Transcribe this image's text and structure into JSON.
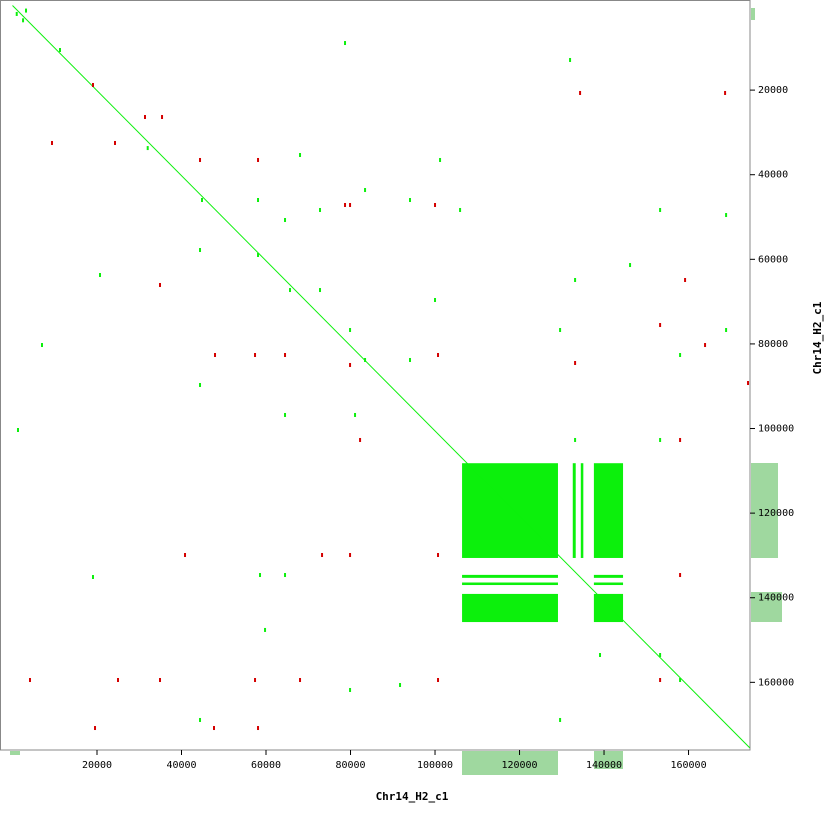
{
  "chart_data": {
    "type": "dotplot",
    "xlabel": "Chr14_H2_c1",
    "ylabel": "Chr14_H2_c1",
    "xlim": [
      0,
      174500
    ],
    "ylim": [
      0,
      175500
    ],
    "xticks": [
      20000,
      40000,
      60000,
      80000,
      100000,
      120000,
      140000,
      160000
    ],
    "yticks": [
      20000,
      40000,
      60000,
      80000,
      100000,
      120000,
      140000,
      160000
    ],
    "color": "#0cf00c",
    "diagonal": {
      "x": [
        0,
        174500
      ],
      "y": [
        0,
        175500
      ]
    },
    "blocks": [
      {
        "x": [
          106400,
          129100
        ],
        "y": [
          108200,
          130600
        ]
      },
      {
        "x": [
          137600,
          144500
        ],
        "y": [
          108200,
          130600
        ]
      },
      {
        "x": [
          106400,
          129100
        ],
        "y": [
          139100,
          145750
        ]
      },
      {
        "x": [
          137600,
          144500
        ],
        "y": [
          139100,
          145750
        ]
      },
      {
        "x": [
          132600,
          133300
        ],
        "y": [
          108200,
          130600
        ]
      },
      {
        "x": [
          134500,
          135100
        ],
        "y": [
          108200,
          130600
        ]
      },
      {
        "x": [
          106400,
          129100
        ],
        "y": [
          134600,
          135300
        ]
      },
      {
        "x": [
          106400,
          129100
        ],
        "y": [
          136400,
          137000
        ]
      },
      {
        "x": [
          137600,
          144500
        ],
        "y": [
          134600,
          135300
        ]
      },
      {
        "x": [
          137600,
          144500
        ],
        "y": [
          136400,
          137000
        ]
      }
    ],
    "series": [
      {
        "color": "#0cf00c",
        "x": [
          44850,
          58110,
          64500,
          72780,
          83440,
          94080,
          44380,
          58110,
          65680,
          72780,
          79890,
          83440,
          94080,
          44380,
          64500,
          81070,
          100000,
          105930,
          129600,
          133150,
          153270,
          158000,
          168890,
          168890,
          20710,
          1300,
          11240,
          131960,
          101190,
          68050,
          58580,
          64500,
          139050,
          153270,
          158000,
          79890,
          91720,
          44380,
          59770,
          19050,
          78700,
          6980,
          153270,
          133150,
          129600,
          146160,
          1000,
          2500,
          3200,
          32000
        ],
        "y": [
          45980,
          45980,
          50710,
          48340,
          43620,
          45980,
          57800,
          58980,
          67260,
          67260,
          76710,
          83800,
          83800,
          89710,
          96800,
          96800,
          69620,
          48340,
          76710,
          64890,
          48340,
          82620,
          49530,
          76710,
          63710,
          100350,
          10520,
          12880,
          36520,
          35340,
          134630,
          134630,
          153540,
          153540,
          159450,
          161810,
          160630,
          168900,
          147620,
          135100,
          8870,
          80260,
          102710,
          102710,
          168900,
          61350,
          2000,
          3500,
          1200,
          33700
        ]
      },
      {
        "color": "#d40000",
        "x": [
          24260,
          31360,
          44380,
          58110,
          79890,
          100000,
          34910,
          47930,
          57400,
          64500,
          79890,
          82260,
          100710,
          159180,
          158000,
          153270,
          163910,
          73260,
          79890,
          40830,
          100710,
          158000,
          24970,
          34910,
          57400,
          68050,
          100710,
          153270,
          19530,
          58110,
          47690,
          4140,
          9350,
          19050,
          35390,
          168650,
          134330,
          174080,
          133150,
          78700
        ],
        "y": [
          32500,
          26360,
          36520,
          36520,
          47160,
          47160,
          66070,
          82620,
          82620,
          82620,
          84980,
          102710,
          82620,
          64890,
          102710,
          75530,
          80260,
          129900,
          129900,
          129900,
          129900,
          134630,
          159450,
          159450,
          159450,
          159450,
          159450,
          159450,
          170800,
          170800,
          170800,
          159450,
          32500,
          18790,
          26360,
          20680,
          20680,
          89240,
          84510,
          47160
        ]
      }
    ]
  }
}
